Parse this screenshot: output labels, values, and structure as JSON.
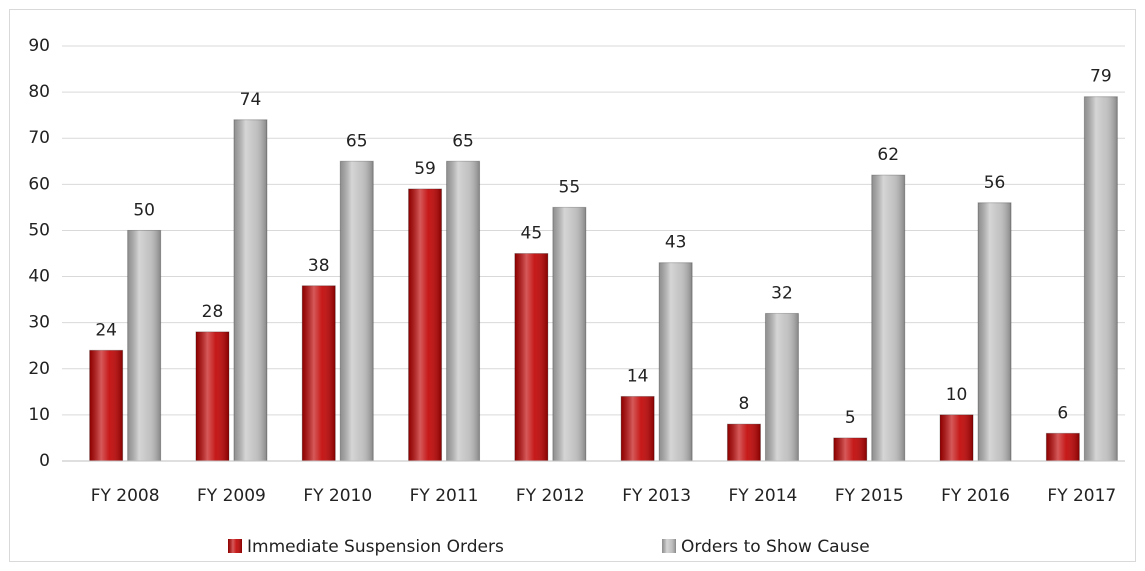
{
  "chart_data": {
    "type": "bar",
    "categories": [
      "FY 2008",
      "FY 2009",
      "FY 2010",
      "FY 2011",
      "FY 2012",
      "FY 2013",
      "FY 2014",
      "FY 2015",
      "FY 2016",
      "FY 2017"
    ],
    "series": [
      {
        "name": "Immediate Suspension Orders",
        "color": "#c00000",
        "values": [
          24,
          28,
          38,
          59,
          45,
          14,
          8,
          5,
          10,
          6
        ]
      },
      {
        "name": "Orders to Show Cause",
        "color": "#bfbfbf",
        "values": [
          50,
          74,
          65,
          65,
          55,
          43,
          32,
          62,
          56,
          79
        ]
      }
    ],
    "ylim": [
      0,
      90
    ],
    "yticks": [
      0,
      10,
      20,
      30,
      40,
      50,
      60,
      70,
      80,
      90
    ],
    "grid": true,
    "legend": "bottom"
  }
}
